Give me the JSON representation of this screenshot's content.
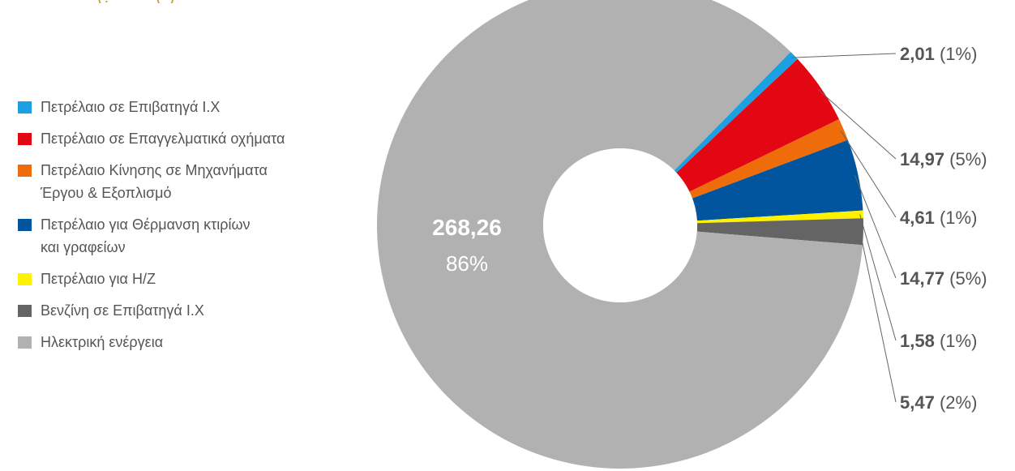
{
  "header_fragment": "(: -  - -  ( )",
  "chart_data": {
    "type": "pie",
    "donut": true,
    "slices": [
      {
        "label": "Πετρέλαιο σε Επιβατηγά Ι.Χ",
        "value": 2.01,
        "value_text": "2,01",
        "pct_text": "(1%)",
        "color": "#1ba1e2"
      },
      {
        "label": "Πετρέλαιο σε Επαγγελματικά οχήματα",
        "value": 14.97,
        "value_text": "14,97",
        "pct_text": "(5%)",
        "color": "#e30613"
      },
      {
        "label": "Πετρέλαιο Κίνησης σε Μηχανήματα Έργου & Εξοπλισμό",
        "value": 4.61,
        "value_text": "4,61",
        "pct_text": "(1%)",
        "color": "#ef6c0a"
      },
      {
        "label": "Πετρέλαιο για Θέρμανση κτιρίων και γραφείων",
        "value": 14.77,
        "value_text": "14,77",
        "pct_text": "(5%)",
        "color": "#00559e"
      },
      {
        "label": "Πετρέλαιο για Η/Ζ",
        "value": 1.58,
        "value_text": "1,58",
        "pct_text": "(1%)",
        "color": "#fff200"
      },
      {
        "label": "Βενζίνη σε Επιβατηγά Ι.Χ",
        "value": 5.47,
        "value_text": "5,47",
        "pct_text": "(2%)",
        "color": "#646464"
      },
      {
        "label": "Ηλεκτρική ενέργεια",
        "value": 268.26,
        "value_text": "268,26",
        "pct_text": "86%",
        "color": "#b1b1b1"
      }
    ],
    "legend_placement": "left"
  },
  "legend": [
    {
      "line1": "Πετρέλαιο σε Επιβατηγά Ι.Χ",
      "line2": "",
      "color": "#1ba1e2"
    },
    {
      "line1": "Πετρέλαιο σε Επαγγελματικά οχήματα",
      "line2": "",
      "color": "#e30613"
    },
    {
      "line1": "Πετρέλαιο Κίνησης σε Μηχανήματα",
      "line2": "Έργου & Εξοπλισμό",
      "color": "#ef6c0a"
    },
    {
      "line1": "Πετρέλαιο για Θέρμανση κτιρίων",
      "line2": "και γραφείων",
      "color": "#00559e"
    },
    {
      "line1": "Πετρέλαιο για Η/Ζ",
      "line2": "",
      "color": "#fff200"
    },
    {
      "line1": "Βενζίνη σε Επιβατηγά Ι.Χ",
      "line2": "",
      "color": "#646464"
    },
    {
      "line1": "Ηλεκτρική ενέργεια",
      "line2": "",
      "color": "#b1b1b1"
    }
  ]
}
